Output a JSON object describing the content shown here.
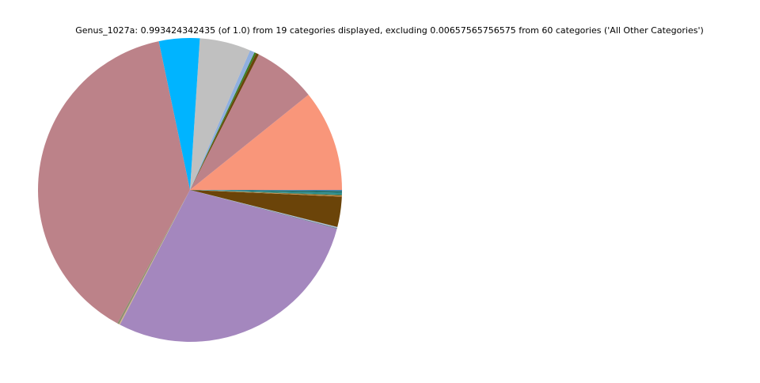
{
  "chart_data": {
    "type": "pie",
    "title": "Genus_1027a: 0.993424342435 (of 1.0) from 19 categories displayed, excluding 0.00657565756575 from 60 categories ('All Other Categories')",
    "categories": [
      null,
      null,
      null,
      null,
      null,
      null,
      null,
      null,
      null,
      null,
      null,
      null,
      null,
      null,
      null,
      null,
      null,
      null,
      null
    ],
    "values": [
      0.107,
      0.067,
      0.003,
      0.002,
      0.005,
      0.054,
      0.043,
      0.385,
      0.002,
      0.001,
      0.283,
      0.001,
      0.001,
      0.032,
      0.001,
      0.001,
      0.002,
      0.002,
      0.001
    ],
    "colors": [
      "#f9967a",
      "#bc8289",
      "#6b4409",
      "#3a7d22",
      "#8fafdf",
      "#c0c0c0",
      "#00b4ff",
      "#bc8289",
      "#8f8f70",
      "#d2b48c",
      "#a487be",
      "#708090",
      "#b0c4de",
      "#6b4409",
      "#cd853f",
      "#556b2f",
      "#2f8f8f",
      "#20706a",
      "#4682b4"
    ]
  }
}
